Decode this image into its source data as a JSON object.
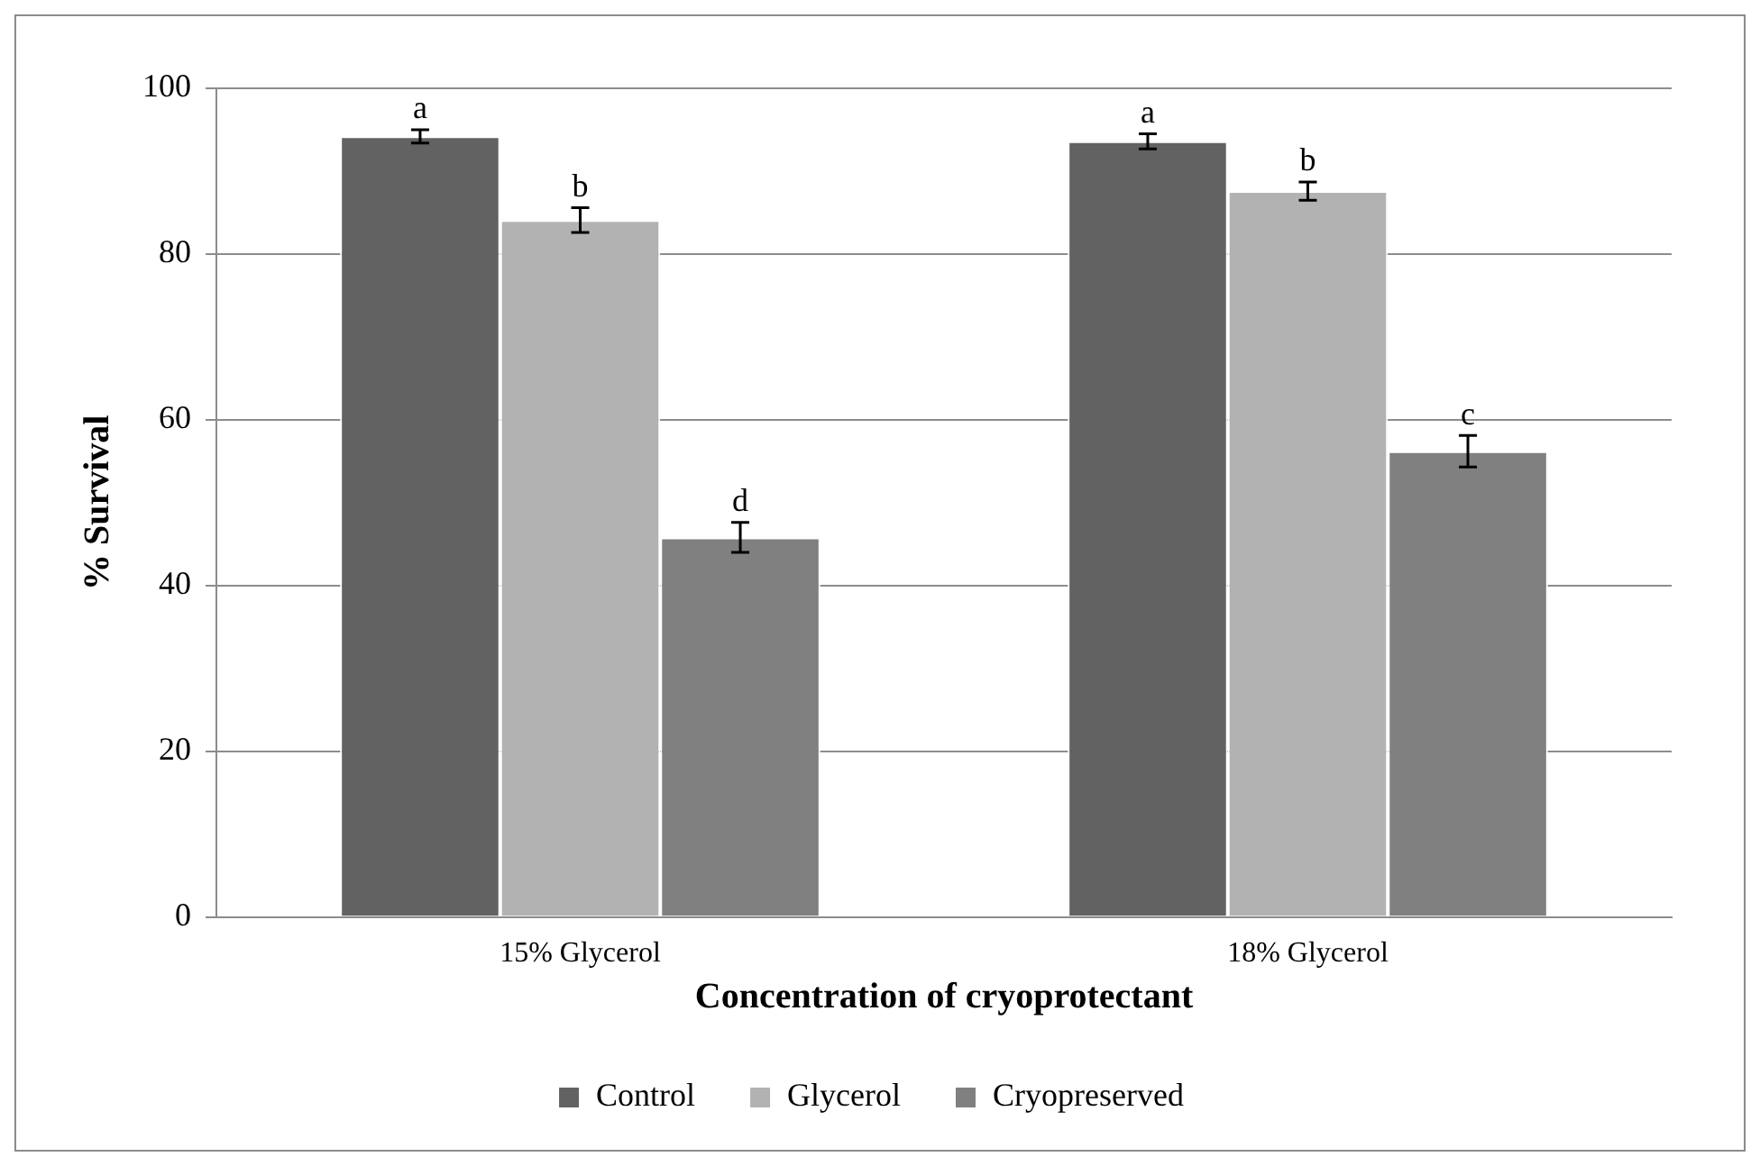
{
  "chart_data": {
    "type": "bar",
    "xlabel": "Concentration of cryoprotectant",
    "ylabel": "% Survival",
    "categories": [
      "15% Glycerol",
      "18% Glycerol"
    ],
    "series": [
      {
        "name": "Control",
        "color": "#626262",
        "values": [
          94.2,
          93.6
        ],
        "errors": [
          0.8,
          0.9
        ]
      },
      {
        "name": "Glycerol",
        "color": "#b2b2b2",
        "values": [
          84.1,
          87.6
        ],
        "errors": [
          1.5,
          1.1
        ]
      },
      {
        "name": "Cryopreserved",
        "color": "#808080",
        "values": [
          45.8,
          56.2
        ],
        "errors": [
          1.8,
          1.9
        ]
      }
    ],
    "ylim": [
      0,
      100
    ],
    "yticks": [
      0,
      20,
      40,
      60,
      80,
      100
    ],
    "grid": "y",
    "legend": "bottom",
    "annotations": [
      "a",
      "b",
      "d",
      "a",
      "b",
      "c"
    ]
  }
}
